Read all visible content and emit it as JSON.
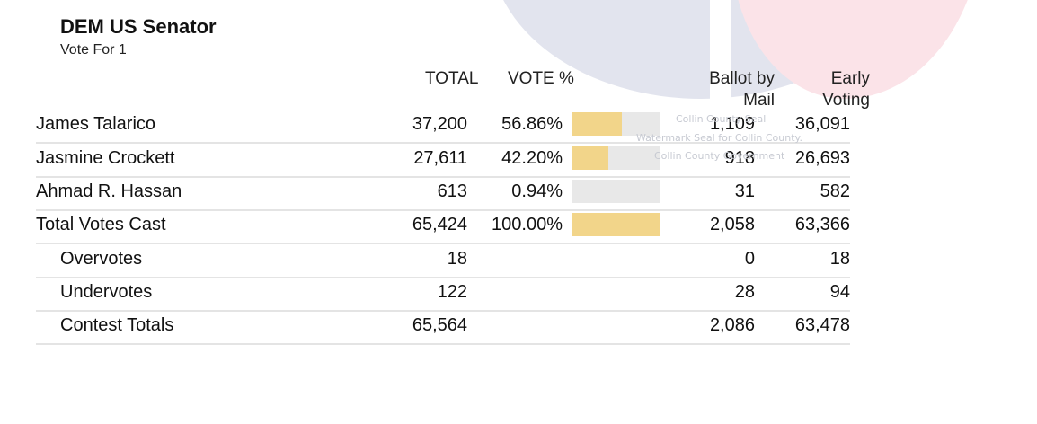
{
  "contest": {
    "title": "DEM US Senator",
    "vote_for": "Vote For 1"
  },
  "headers": {
    "total": "TOTAL",
    "vote_pct": "VOTE %",
    "ballot_by_mail": "Ballot by Mail",
    "early_voting": "Early Voting"
  },
  "watermark": {
    "line1": "Collin County Seal",
    "line2": "Watermark Seal for Collin County.",
    "line3": "Collin County Government"
  },
  "candidates": [
    {
      "name": "James Talarico",
      "total": "37,200",
      "pct": "56.86%",
      "pct_value": 56.86,
      "mail": "1,109",
      "early": "36,091"
    },
    {
      "name": "Jasmine Crockett",
      "total": "27,611",
      "pct": "42.20%",
      "pct_value": 42.2,
      "mail": "918",
      "early": "26,693"
    },
    {
      "name": "Ahmad R. Hassan",
      "total": "613",
      "pct": "0.94%",
      "pct_value": 0.94,
      "mail": "31",
      "early": "582"
    }
  ],
  "totals": {
    "votes_cast": {
      "name": "Total Votes Cast",
      "total": "65,424",
      "pct": "100.00%",
      "pct_value": 100,
      "mail": "2,058",
      "early": "63,366"
    },
    "overvotes": {
      "name": "Overvotes",
      "total": "18",
      "mail": "0",
      "early": "18"
    },
    "undervotes": {
      "name": "Undervotes",
      "total": "122",
      "mail": "28",
      "early": "94"
    },
    "contest_totals": {
      "name": "Contest Totals",
      "total": "65,564",
      "mail": "2,086",
      "early": "63,478"
    }
  },
  "colors": {
    "bar_fill": "#f2d58a",
    "bar_track": "#e8e8e8",
    "seal_blue": "#e2e4ee",
    "seal_red": "#fbe3e8"
  }
}
